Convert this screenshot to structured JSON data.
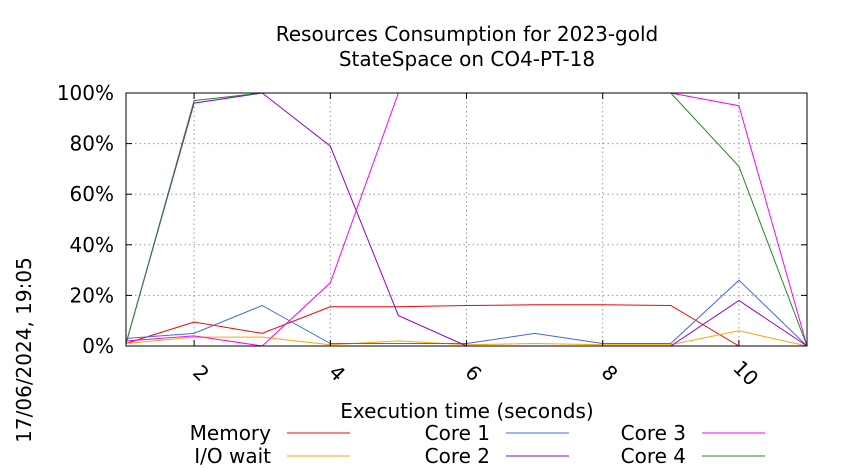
{
  "chart_data": {
    "type": "line",
    "title": [
      "Resources Consumption for 2023-gold",
      "StateSpace on CO4-PT-18"
    ],
    "xlabel": "Execution time (seconds)",
    "ylabel": "",
    "timestamp": "17/06/2024, 19:05",
    "xlim": [
      1,
      11
    ],
    "ylim": [
      0,
      100
    ],
    "x_ticks": [
      2,
      4,
      6,
      8,
      10
    ],
    "y_ticks": [
      0,
      20,
      40,
      60,
      80,
      100
    ],
    "y_tick_labels": [
      "0%",
      "20%",
      "40%",
      "60%",
      "80%",
      "100%"
    ],
    "grid": true,
    "legend_position": "bottom",
    "x": [
      1,
      2,
      3,
      4,
      5,
      6,
      7,
      8,
      9,
      10,
      11
    ],
    "series": [
      {
        "name": "Memory",
        "color": "#ff0000",
        "values": [
          1,
          9.5,
          5,
          15.5,
          15.5,
          16,
          16.3,
          16.3,
          16,
          0,
          0
        ]
      },
      {
        "name": "I/O wait",
        "color": "#ffa500",
        "values": [
          1,
          3.5,
          3.5,
          0.5,
          2,
          0.5,
          1,
          0.5,
          0.5,
          6,
          0
        ]
      },
      {
        "name": "Core 1",
        "color": "#4169e1",
        "values": [
          3,
          5,
          16,
          1,
          1,
          1,
          5,
          1,
          1,
          26,
          0
        ]
      },
      {
        "name": "Core 2",
        "color": "#9400d3",
        "values": [
          1,
          96,
          100,
          79,
          12,
          0,
          0,
          0,
          0,
          18,
          0
        ]
      },
      {
        "name": "Core 3",
        "color": "#ff00ff",
        "values": [
          2,
          4,
          0,
          25,
          100,
          100,
          100,
          100,
          100,
          95,
          0
        ]
      },
      {
        "name": "Core 4",
        "color": "#228b22",
        "values": [
          1,
          97,
          100,
          100,
          100,
          100,
          100,
          100,
          100,
          71,
          0
        ]
      }
    ]
  }
}
